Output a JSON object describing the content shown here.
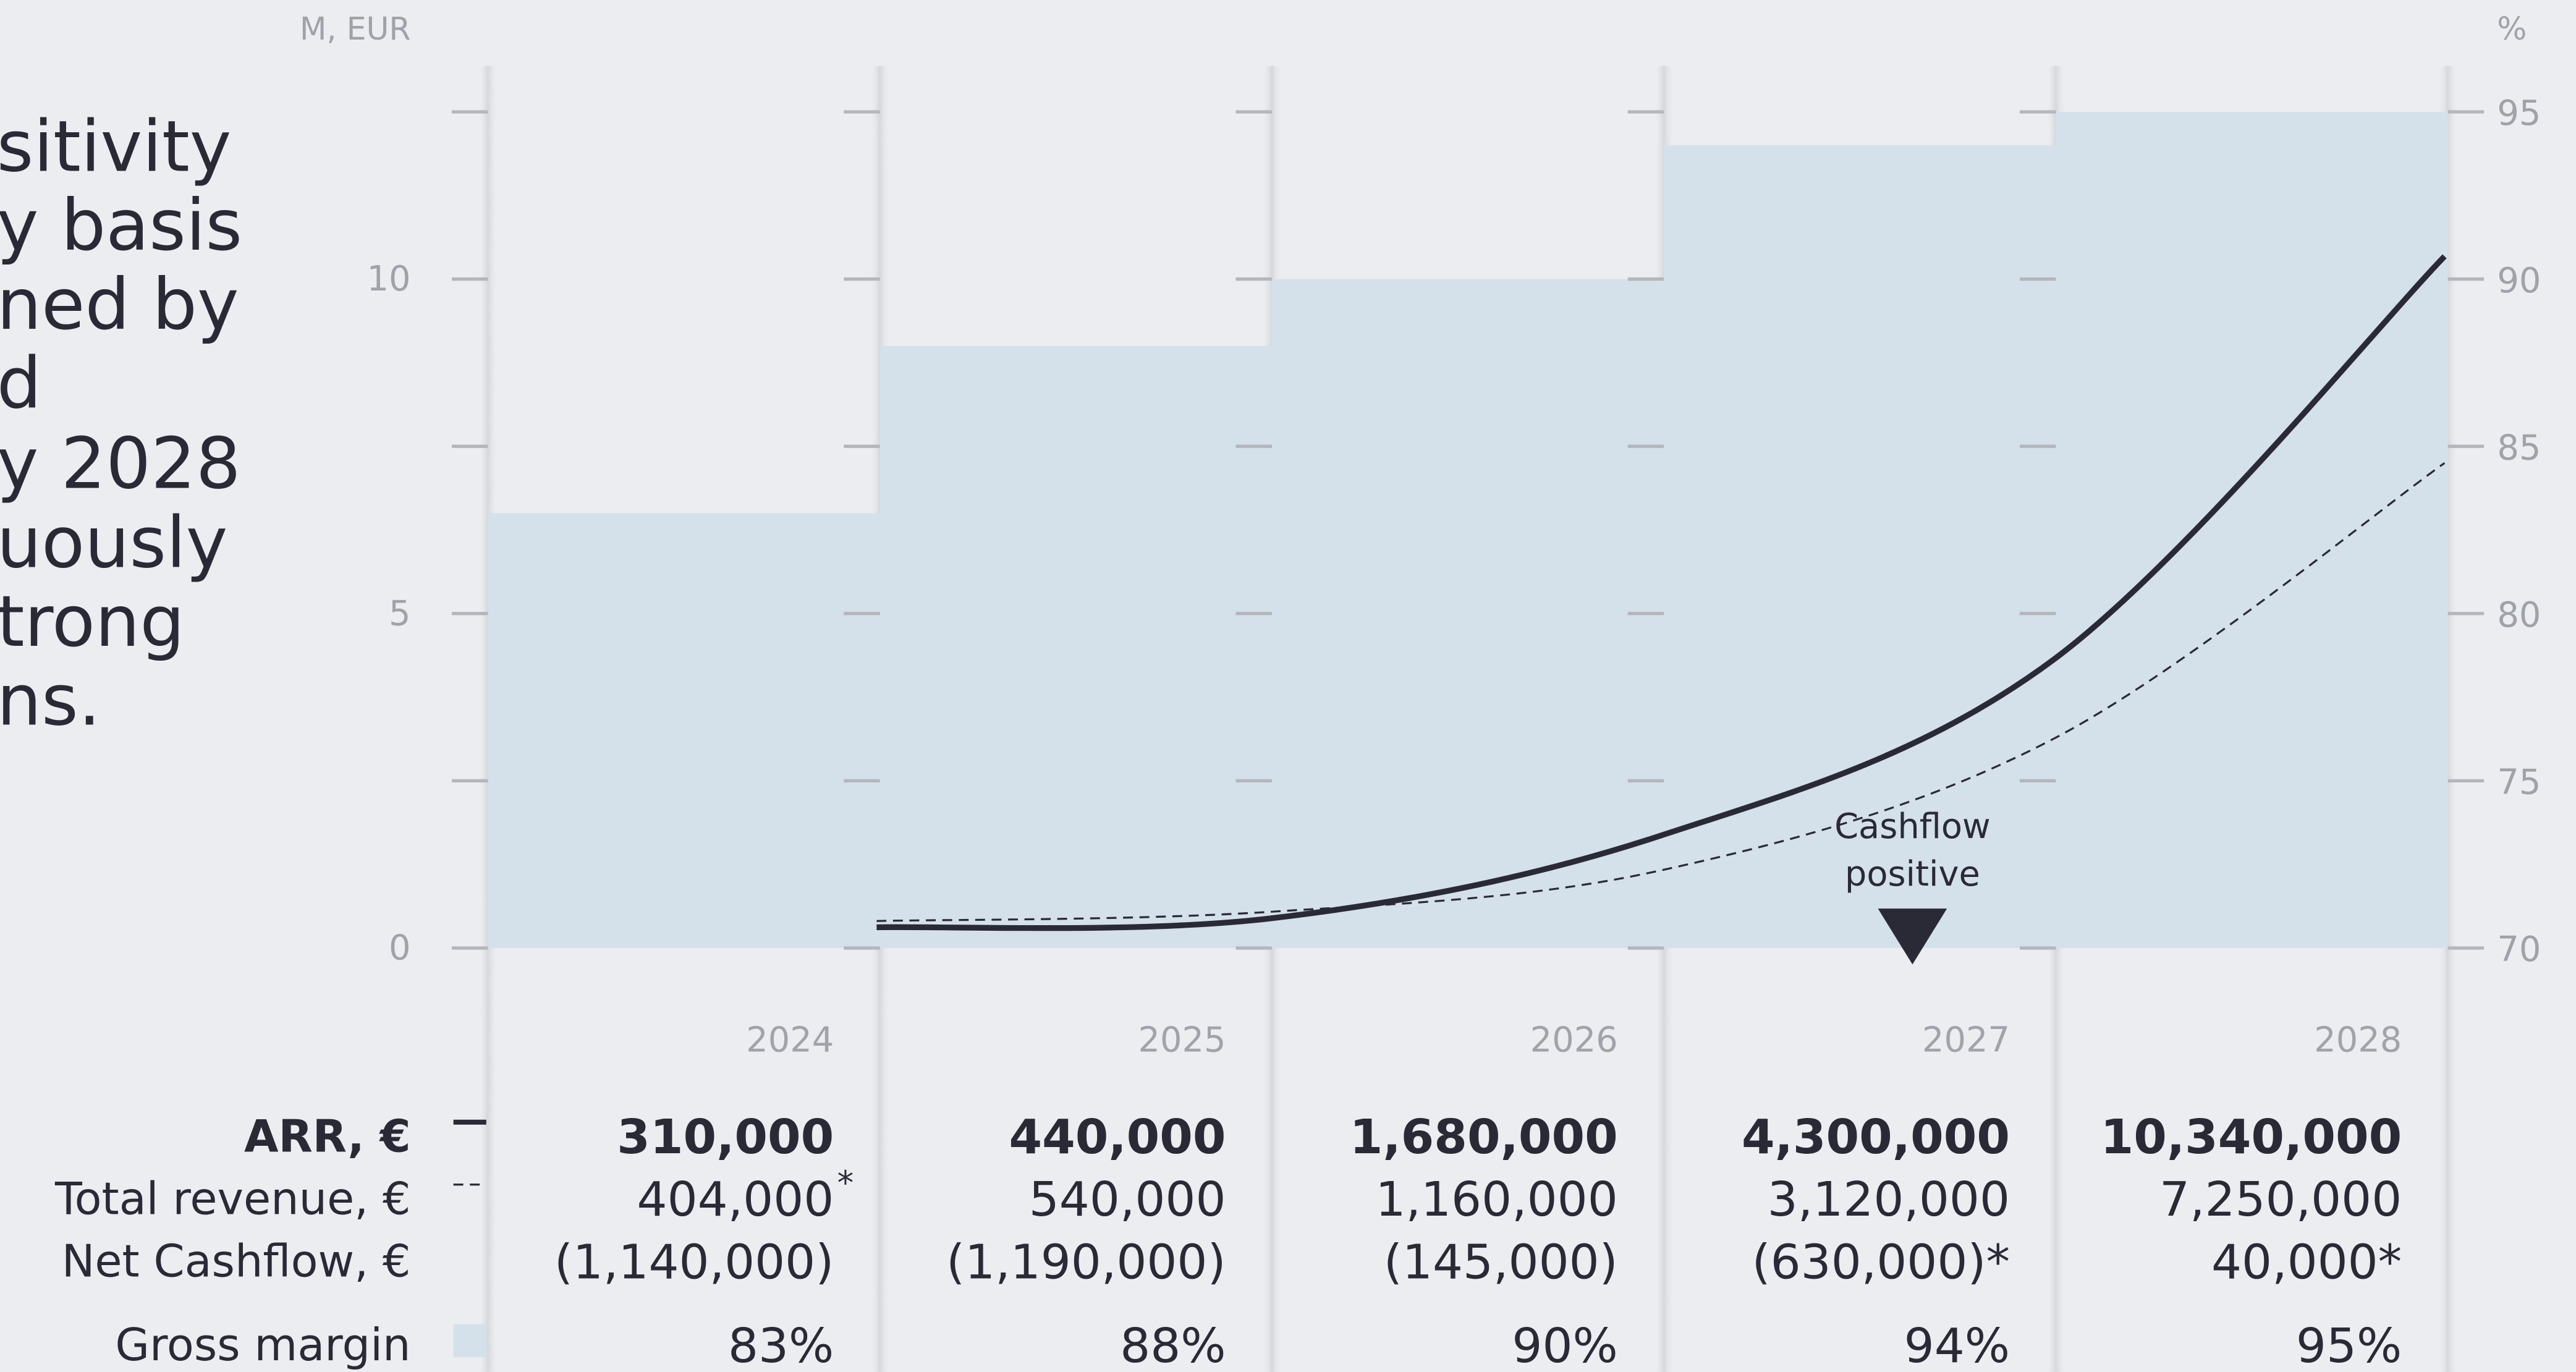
{
  "intro": {
    "lines": [
      "sitivity",
      "y basis",
      "ned by",
      "d",
      "y 2028",
      "uously",
      "trong",
      "ns."
    ]
  },
  "chart_data": {
    "type": "bar",
    "y_label": "M, EUR",
    "y2_label": "%",
    "categories": [
      "2024",
      "2025",
      "2026",
      "2027",
      "2028"
    ],
    "ylim": [
      0,
      12.5
    ],
    "yticks": [
      0,
      5,
      10
    ],
    "yminorticks": [
      2.5,
      7.5,
      12.5
    ],
    "y2lim": [
      70,
      95
    ],
    "y2ticks": [
      70,
      75,
      80,
      85,
      90,
      95
    ],
    "series": [
      {
        "name": "ARR, €",
        "type": "line",
        "color": "#2a2a36",
        "dashed": false,
        "values": [
          0.31,
          0.44,
          1.68,
          4.3,
          10.34
        ],
        "value_labels": [
          "310,000",
          "440,000",
          "1,680,000",
          "4,300,000",
          "10,340,000"
        ]
      },
      {
        "name": "Total revenue, €",
        "type": "line",
        "color": "#2a2a36",
        "dashed": true,
        "values": [
          0.404,
          0.54,
          1.16,
          3.12,
          7.25
        ],
        "value_labels": [
          "404,000",
          "540,000",
          "1,160,000",
          "3,120,000",
          "7,250,000"
        ],
        "value_notes": [
          "*",
          null,
          null,
          null,
          null
        ]
      },
      {
        "name": "Net Cashflow, €",
        "type": "text",
        "value_labels": [
          "(1,140,000)",
          "(1,190,000)",
          "(145,000)",
          "(630,000)*",
          "40,000*"
        ]
      },
      {
        "name": "Gross margin",
        "type": "bar",
        "axis": "y2",
        "color": "#d4e1ea",
        "values": [
          83,
          88,
          90,
          94,
          95
        ],
        "value_labels": [
          "83%",
          "88%",
          "90%",
          "94%",
          "95%"
        ]
      }
    ],
    "annotation": {
      "lines": [
        "Cashflow",
        "positive"
      ],
      "at": "2027"
    }
  }
}
